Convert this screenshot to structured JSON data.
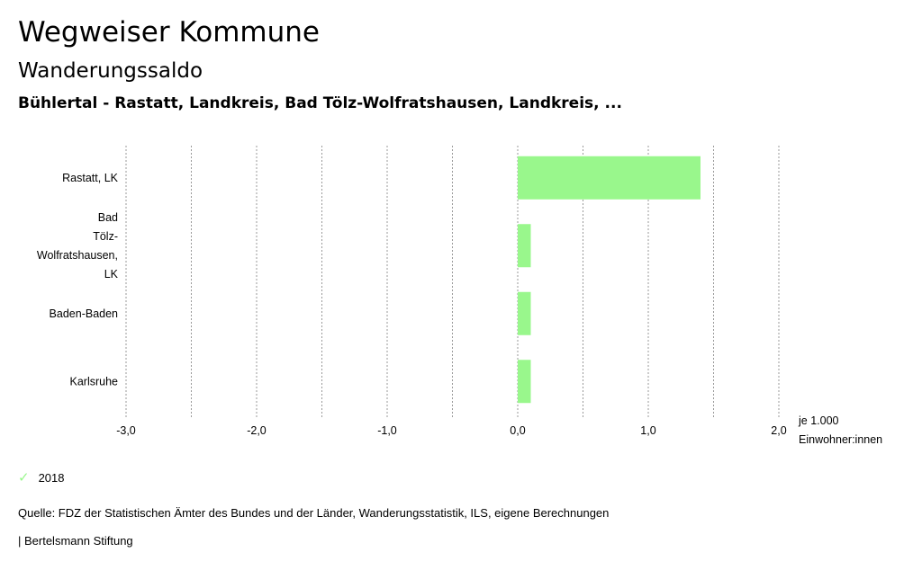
{
  "header": {
    "title": "Wegweiser Kommune",
    "subtitle": "Wanderungssaldo",
    "region": "Bühlertal - Rastatt, Landkreis, Bad Tölz-Wolfratshausen, Landkreis, ..."
  },
  "chart_data": {
    "type": "bar",
    "orientation": "horizontal",
    "categories": [
      [
        "Rastatt, LK"
      ],
      [
        "Bad",
        "Tölz-",
        "Wolfratshausen,",
        "LK"
      ],
      [
        "Baden-Baden"
      ],
      [
        "Karlsruhe"
      ]
    ],
    "series": [
      {
        "name": "2018",
        "values": [
          1.4,
          0.1,
          0.1,
          0.1
        ]
      }
    ],
    "xlim": [
      -3.0,
      2.0
    ],
    "xticks": [
      -3.0,
      -2.0,
      -1.0,
      0.0,
      1.0,
      2.0
    ],
    "xtick_labels": [
      "-3,0",
      "-2,0",
      "-1,0",
      "0,0",
      "1,0",
      "2,0"
    ],
    "unit_label": [
      "je 1.000",
      "Einwohner:innen"
    ],
    "bar_color": "#99f78c",
    "grid": true
  },
  "legend": {
    "label": "2018",
    "color": "#99f78c"
  },
  "source": "Quelle: FDZ der Statistischen Ämter des Bundes und der Länder, Wanderungsstatistik, ILS, eigene Berechnungen",
  "footer": "| Bertelsmann Stiftung"
}
